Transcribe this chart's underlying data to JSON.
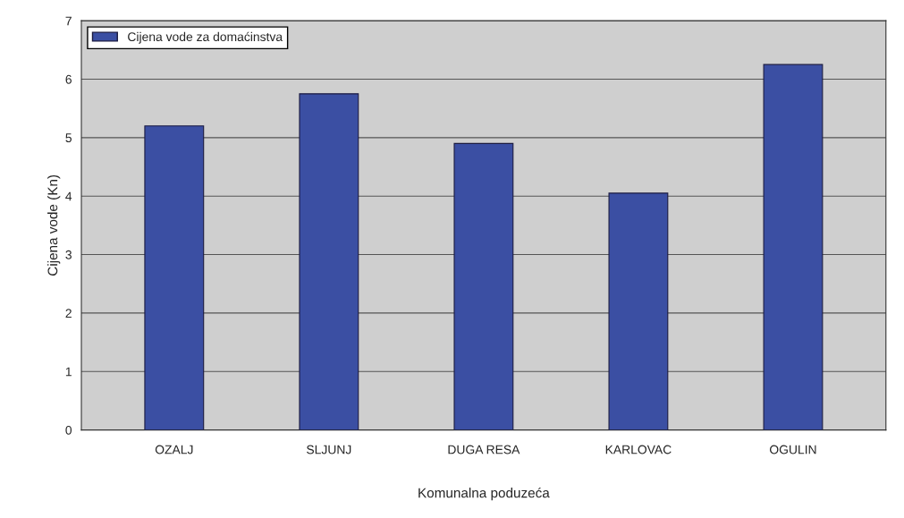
{
  "chart_data": {
    "type": "bar",
    "xlabel": "Komunalna poduzeća",
    "ylabel": "Cijena vode (Kn)",
    "categories": [
      "OZALJ",
      "SLJUNJ",
      "DUGA RESA",
      "KARLOVAC",
      "OGULIN"
    ],
    "series": [
      {
        "name": "Cijena vode za domaćinstva",
        "color": "#3b4fa3",
        "values": [
          5.2,
          5.75,
          4.9,
          4.05,
          6.25
        ]
      }
    ],
    "ylim": [
      0,
      7
    ],
    "yticks": [
      0,
      1,
      2,
      3,
      4,
      5,
      6,
      7
    ],
    "grid": "y",
    "legend": "top left"
  }
}
